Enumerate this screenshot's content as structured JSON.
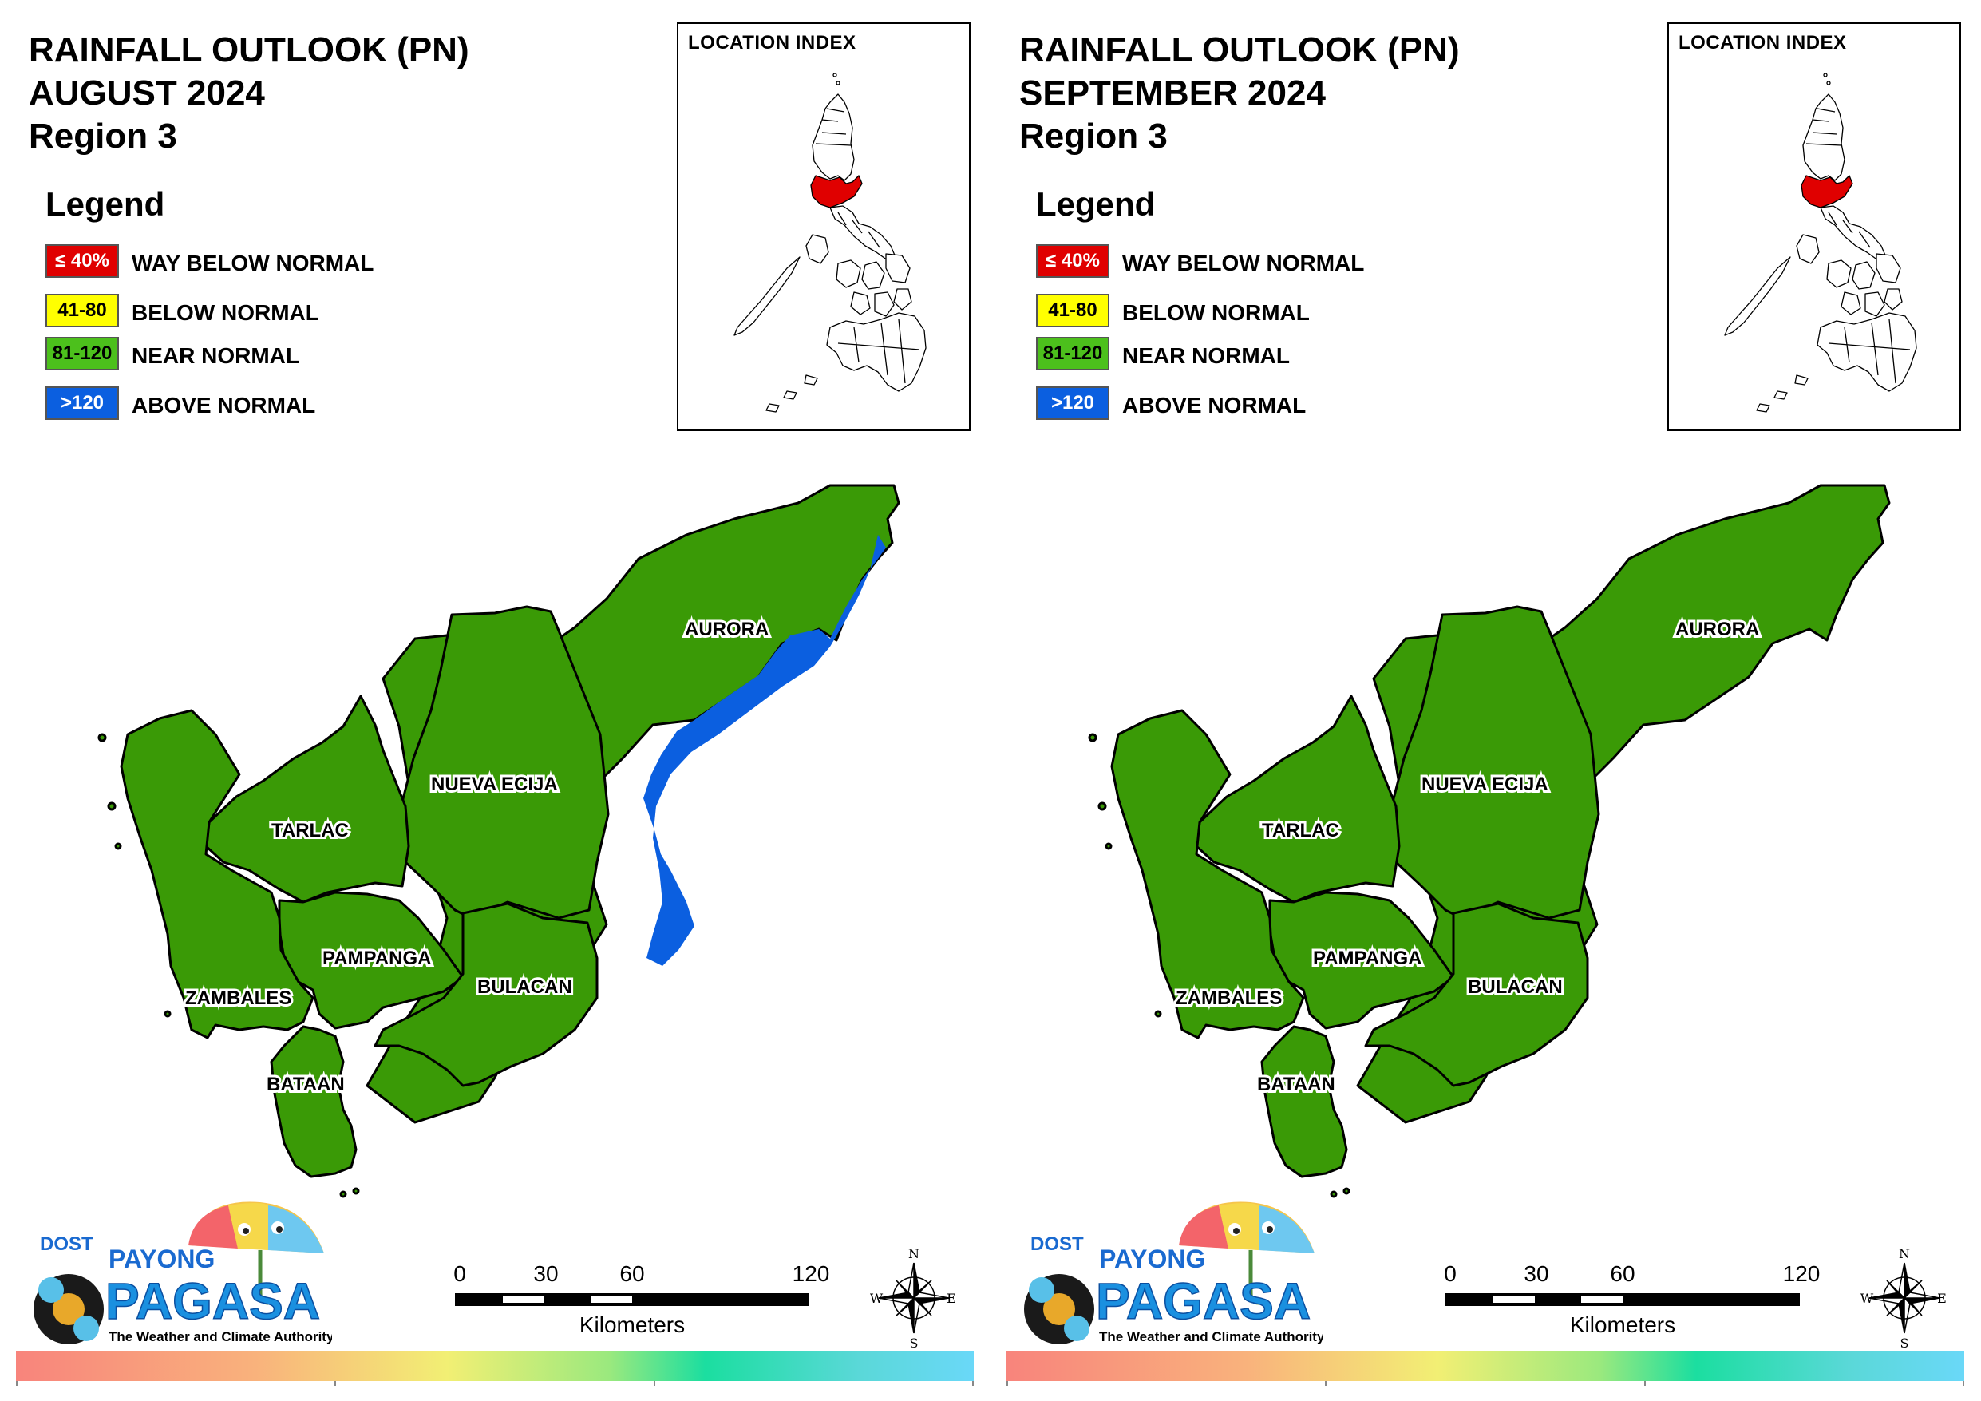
{
  "panels": [
    {
      "title_line1": "RAINFALL OUTLOOK (PN)",
      "title_line2": "AUGUST 2024",
      "title_line3": "Region 3",
      "aurora_above_normal_strip": true
    },
    {
      "title_line1": "RAINFALL OUTLOOK (PN)",
      "title_line2": "SEPTEMBER 2024",
      "title_line3": "Region 3",
      "aurora_above_normal_strip": false
    }
  ],
  "legend": {
    "title": "Legend",
    "items": [
      {
        "code": "≤ 40%",
        "label": "WAY BELOW NORMAL",
        "color": "#e00000",
        "text_color": "#ffffff"
      },
      {
        "code": "41-80",
        "label": "BELOW NORMAL",
        "color": "#ffff00",
        "text_color": "#000000"
      },
      {
        "code": "81-120",
        "label": "NEAR NORMAL",
        "color": "#4cc01c",
        "text_color": "#000000"
      },
      {
        "code": ">120",
        "label": "ABOVE NORMAL",
        "color": "#0b5fe0",
        "text_color": "#ffffff"
      }
    ]
  },
  "location_index": {
    "title": "LOCATION INDEX",
    "highlight_color": "#e00000"
  },
  "provinces": [
    "AURORA",
    "NUEVA ECIJA",
    "TARLAC",
    "PAMPANGA",
    "ZAMBALES",
    "BULACAN",
    "BATAAN"
  ],
  "colors": {
    "near_normal_fill": "#3a9a06",
    "above_normal_fill": "#0b5fe0"
  },
  "logo": {
    "dost": "DOST",
    "payong": "PAYONG",
    "pagasa": "PAGASA",
    "tagline": "The Weather and Climate Authority"
  },
  "scale_bar": {
    "ticks": [
      "0",
      "30",
      "60",
      "120"
    ],
    "unit": "Kilometers"
  },
  "compass": {
    "n": "N",
    "s": "S",
    "e": "E",
    "w": "W"
  }
}
